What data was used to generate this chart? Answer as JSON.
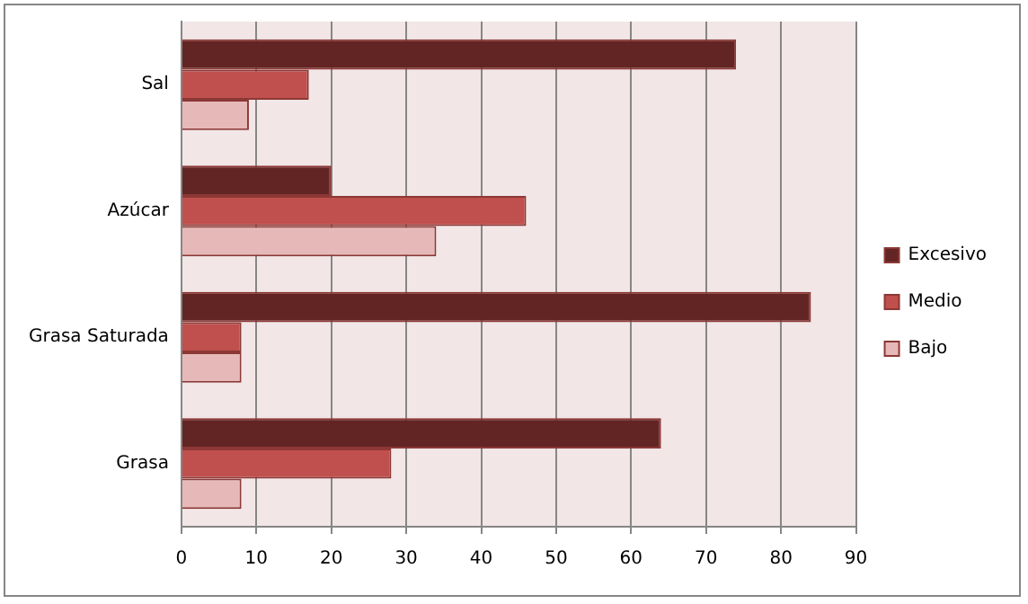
{
  "chart_data": {
    "type": "bar",
    "orientation": "horizontal",
    "categories": [
      "Sal",
      "Azúcar",
      "Grasa Saturada",
      "Grasa"
    ],
    "series": [
      {
        "name": "Excesivo",
        "color": "#632523",
        "values": [
          74,
          20,
          84,
          64
        ]
      },
      {
        "name": "Medio",
        "color": "#c0504d",
        "values": [
          17,
          46,
          8,
          28
        ]
      },
      {
        "name": "Bajo",
        "color": "#e6b9b8",
        "values": [
          9,
          34,
          8,
          8
        ]
      }
    ],
    "xlim": [
      0,
      90
    ],
    "xticks": [
      0,
      10,
      20,
      30,
      40,
      50,
      60,
      70,
      80,
      90
    ],
    "grid": "x",
    "legend": "right"
  }
}
